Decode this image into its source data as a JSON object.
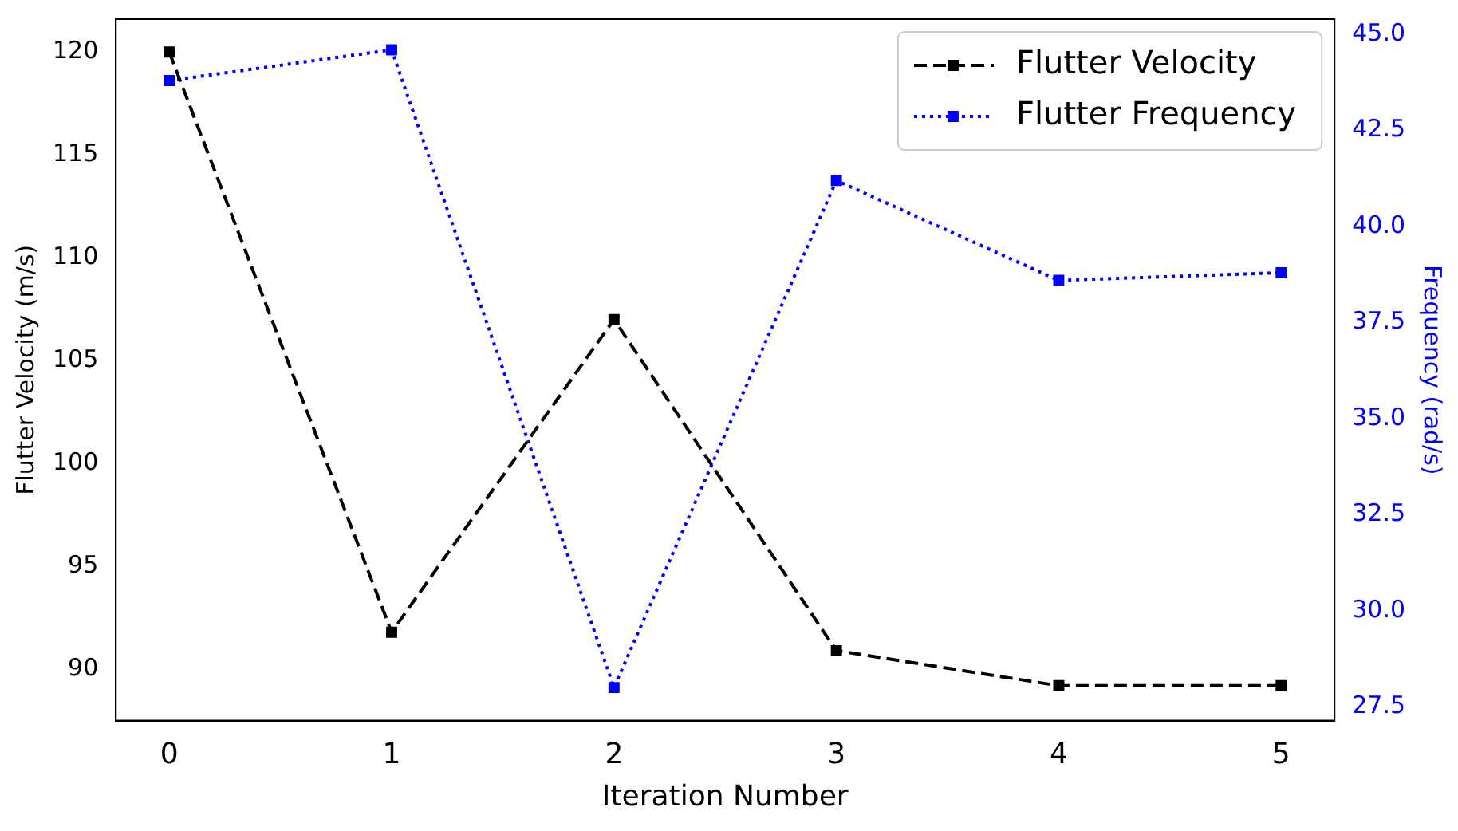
{
  "chart_data": {
    "type": "line",
    "xlabel": "Iteration Number",
    "ylabel": "Flutter Velocity (m/s)",
    "y2label": "Frequency (rad/s)",
    "x": [
      0,
      1,
      2,
      3,
      4,
      5
    ],
    "series": [
      {
        "name": "Flutter Velocity",
        "color": "#000000",
        "values": [
          120,
          91.8,
          107,
          90.9,
          89.2,
          89.2
        ],
        "line_style": "dashed"
      },
      {
        "name": "Flutter Frequency",
        "color": "#0000ff",
        "values": [
          43.8,
          44.6,
          28.0,
          41.2,
          38.6,
          38.8
        ],
        "line_style": "dotted",
        "axis": "y2"
      }
    ],
    "xlim": [
      -0.24,
      5.24
    ],
    "xticks": [
      0,
      1,
      2,
      3,
      4,
      5
    ],
    "ylim": [
      87.5,
      121.6
    ],
    "yticks": [
      90,
      95,
      100,
      105,
      110,
      115,
      120
    ],
    "y2lim": [
      27.14,
      45.4
    ],
    "y2ticks": [
      {
        "value": 27.5,
        "label": "27.5"
      },
      {
        "value": 30,
        "label": "30.0"
      },
      {
        "value": 32.5,
        "label": "32.5"
      },
      {
        "value": 35,
        "label": "35.0"
      },
      {
        "value": 37.5,
        "label": "37.5"
      },
      {
        "value": 40,
        "label": "40.0"
      },
      {
        "value": 42.5,
        "label": "42.5"
      },
      {
        "value": 45,
        "label": "45.0"
      }
    ],
    "marker": "square",
    "legend": "top right",
    "grid": false
  }
}
